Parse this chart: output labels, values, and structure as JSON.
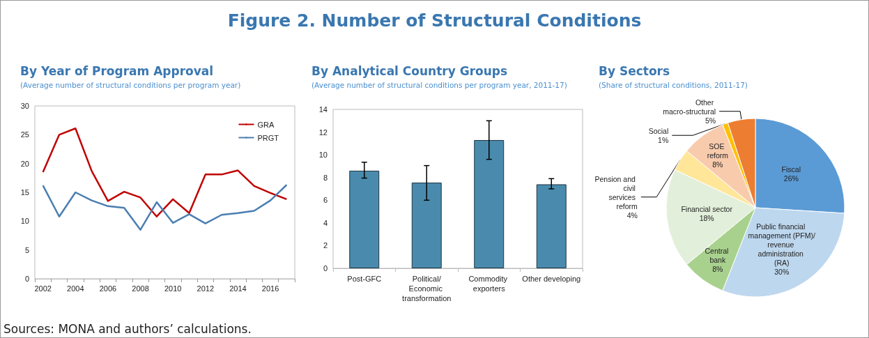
{
  "chart_data": [
    {
      "type": "other",
      "title": "Figure 2. Number of Structural Conditions",
      "annotations": [
        "Sources: MONA and authors’ calculations."
      ]
    },
    {
      "type": "line",
      "title": "By Year of Program Approval",
      "subtitle": "(Average number of structural conditions per program year)",
      "categories": [
        "2002",
        null,
        "2004",
        null,
        "2006",
        null,
        "2008",
        null,
        "2010",
        null,
        "2012",
        null,
        "2014",
        null,
        "2016",
        null
      ],
      "series": [
        {
          "name": "GRA",
          "color": "#c00000",
          "values": [
            18.5,
            25.0,
            26.1,
            18.7,
            13.5,
            15.1,
            14.1,
            10.8,
            13.8,
            11.4,
            18.1,
            18.1,
            18.8,
            16.1,
            14.9,
            13.8
          ]
        },
        {
          "name": "PRGT",
          "color": "#4a7eb0",
          "values": [
            16.2,
            10.8,
            15.0,
            13.6,
            12.6,
            12.3,
            8.5,
            13.3,
            9.7,
            11.2,
            9.6,
            11.1,
            11.4,
            11.8,
            13.6,
            16.3
          ]
        }
      ],
      "ylim": [
        0,
        30
      ],
      "yticks": [
        0,
        5,
        10,
        15,
        20,
        25,
        30
      ],
      "legend": "top right",
      "grid": false
    },
    {
      "type": "bar",
      "title": "By Analytical Country Groups",
      "subtitle": "(Average number of structural conditions per program year, 2011-17)",
      "categories": [
        "Post-GFC",
        "Political/Economic transformation",
        "Commodity exporters",
        "Other developing"
      ],
      "values": [
        8.6,
        7.55,
        11.3,
        7.4
      ],
      "errors": [
        [
          7.95,
          9.35
        ],
        [
          6.0,
          9.05
        ],
        [
          9.6,
          13.0
        ],
        [
          7.0,
          7.9
        ]
      ],
      "color": "#4a8bad",
      "ylim": [
        0,
        14
      ],
      "yticks": [
        0,
        2,
        4,
        6,
        8,
        10,
        12,
        14
      ],
      "grid": false
    },
    {
      "type": "pie",
      "title": "By Sectors",
      "subtitle": "(Share of structural conditions, 2011-17)",
      "categories": [
        "Fiscal",
        "Public financial management (PFM)/revenue administration (RA)",
        "Central bank",
        "Financial sector",
        "Pension and civil services reform",
        "SOE reform",
        "Social",
        "Other macro-structural"
      ],
      "values": [
        26,
        30,
        8,
        18,
        4,
        8,
        1,
        5
      ],
      "colors": [
        "#5b9bd5",
        "#bdd7ee",
        "#a9d18e",
        "#e2efda",
        "#ffe699",
        "#f8cbad",
        "#ffc000",
        "#ed7d31"
      ],
      "value_labels": [
        "26%",
        "30%",
        "8%",
        "18%",
        "4%",
        "8%",
        "1%",
        "5%"
      ]
    }
  ]
}
